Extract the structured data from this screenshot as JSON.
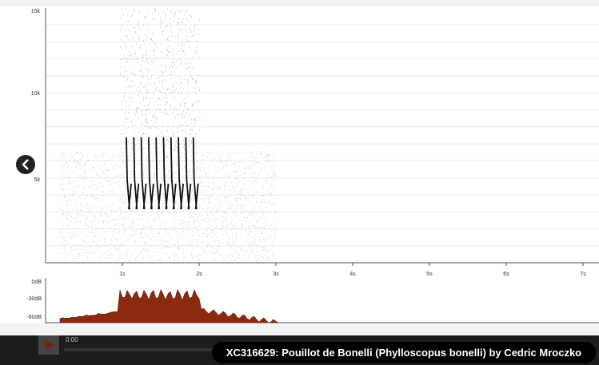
{
  "spectrogram": {
    "y_labels": [
      "15k",
      "10k",
      "5k"
    ],
    "x_labels": [
      "1s",
      "2s",
      "3s",
      "4s",
      "5s",
      "6s",
      "7s"
    ]
  },
  "waveform": {
    "labels": [
      "0dB",
      "-30dB",
      "-60dB"
    ]
  },
  "player": {
    "time": "0:00"
  },
  "caption": "XC316629: Pouillot de Bonelli (Phylloscopus bonelli) by Cedric Mroczko"
}
